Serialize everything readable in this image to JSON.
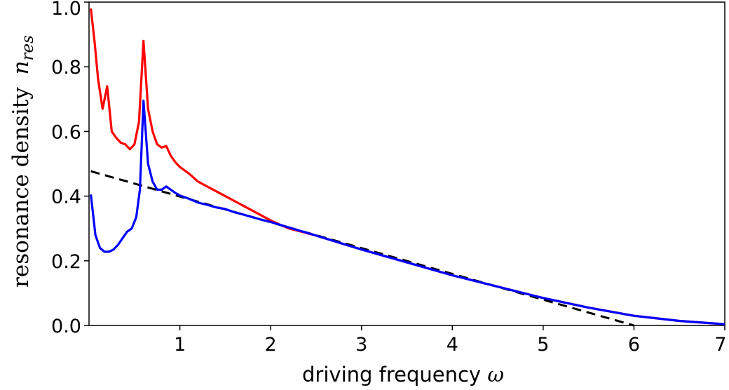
{
  "chart_data": {
    "type": "line",
    "title": "",
    "xlabel": "driving frequency",
    "xlabel_symbol": "ω",
    "ylabel": "resonance density",
    "ylabel_symbol": "n",
    "ylabel_subscript": "res",
    "xlim": [
      0.0,
      7.0
    ],
    "ylim": [
      0.0,
      1.0
    ],
    "x_ticks": [
      1,
      2,
      3,
      4,
      5,
      6,
      7
    ],
    "y_ticks": [
      0.0,
      0.2,
      0.4,
      0.6,
      0.8,
      1.0
    ],
    "x_tick_labels": [
      "1",
      "2",
      "3",
      "4",
      "5",
      "6",
      "7"
    ],
    "y_tick_labels": [
      "0.0",
      "0.2",
      "0.4",
      "0.6",
      "0.8",
      "1.0"
    ],
    "grid": false,
    "legend": "none",
    "series": [
      {
        "color": "#ff0000",
        "style": "solid",
        "points": [
          [
            0.02,
            0.98
          ],
          [
            0.06,
            0.88
          ],
          [
            0.1,
            0.76
          ],
          [
            0.15,
            0.67
          ],
          [
            0.2,
            0.74
          ],
          [
            0.25,
            0.6
          ],
          [
            0.3,
            0.58
          ],
          [
            0.35,
            0.565
          ],
          [
            0.4,
            0.56
          ],
          [
            0.45,
            0.545
          ],
          [
            0.5,
            0.56
          ],
          [
            0.55,
            0.63
          ],
          [
            0.6,
            0.88
          ],
          [
            0.65,
            0.67
          ],
          [
            0.7,
            0.6
          ],
          [
            0.75,
            0.56
          ],
          [
            0.8,
            0.55
          ],
          [
            0.85,
            0.555
          ],
          [
            0.9,
            0.525
          ],
          [
            0.95,
            0.505
          ],
          [
            1.0,
            0.49
          ],
          [
            1.1,
            0.47
          ],
          [
            1.2,
            0.445
          ],
          [
            1.3,
            0.43
          ],
          [
            1.4,
            0.415
          ],
          [
            1.5,
            0.4
          ],
          [
            1.6,
            0.385
          ],
          [
            1.7,
            0.37
          ],
          [
            1.8,
            0.355
          ],
          [
            1.9,
            0.34
          ],
          [
            2.0,
            0.325
          ],
          [
            2.1,
            0.312
          ],
          [
            2.2,
            0.3
          ],
          [
            2.3,
            0.293
          ],
          [
            2.5,
            0.278
          ],
          [
            3.0,
            0.235
          ],
          [
            3.5,
            0.195
          ],
          [
            4.0,
            0.155
          ],
          [
            4.5,
            0.12
          ],
          [
            5.0,
            0.085
          ],
          [
            5.5,
            0.055
          ],
          [
            6.0,
            0.03
          ],
          [
            6.5,
            0.014
          ],
          [
            7.0,
            0.004
          ]
        ]
      },
      {
        "color": "#0000ff",
        "style": "solid",
        "points": [
          [
            0.02,
            0.405
          ],
          [
            0.07,
            0.28
          ],
          [
            0.12,
            0.24
          ],
          [
            0.17,
            0.228
          ],
          [
            0.22,
            0.228
          ],
          [
            0.27,
            0.235
          ],
          [
            0.32,
            0.25
          ],
          [
            0.37,
            0.27
          ],
          [
            0.42,
            0.29
          ],
          [
            0.47,
            0.3
          ],
          [
            0.52,
            0.335
          ],
          [
            0.56,
            0.42
          ],
          [
            0.6,
            0.695
          ],
          [
            0.65,
            0.5
          ],
          [
            0.7,
            0.445
          ],
          [
            0.75,
            0.42
          ],
          [
            0.8,
            0.42
          ],
          [
            0.85,
            0.43
          ],
          [
            0.9,
            0.42
          ],
          [
            0.95,
            0.41
          ],
          [
            1.0,
            0.402
          ],
          [
            1.1,
            0.392
          ],
          [
            1.2,
            0.38
          ],
          [
            1.3,
            0.373
          ],
          [
            1.4,
            0.365
          ],
          [
            1.5,
            0.36
          ],
          [
            1.6,
            0.35
          ],
          [
            1.7,
            0.343
          ],
          [
            1.8,
            0.335
          ],
          [
            1.9,
            0.327
          ],
          [
            2.0,
            0.32
          ],
          [
            2.2,
            0.303
          ],
          [
            2.5,
            0.278
          ],
          [
            3.0,
            0.235
          ],
          [
            3.5,
            0.195
          ],
          [
            4.0,
            0.155
          ],
          [
            4.5,
            0.12
          ],
          [
            5.0,
            0.085
          ],
          [
            5.5,
            0.055
          ],
          [
            6.0,
            0.03
          ],
          [
            6.5,
            0.014
          ],
          [
            7.0,
            0.004
          ]
        ]
      },
      {
        "color": "#000000",
        "style": "dashed",
        "points": [
          [
            0.02,
            0.477
          ],
          [
            6.0,
            0.0
          ]
        ]
      }
    ]
  }
}
